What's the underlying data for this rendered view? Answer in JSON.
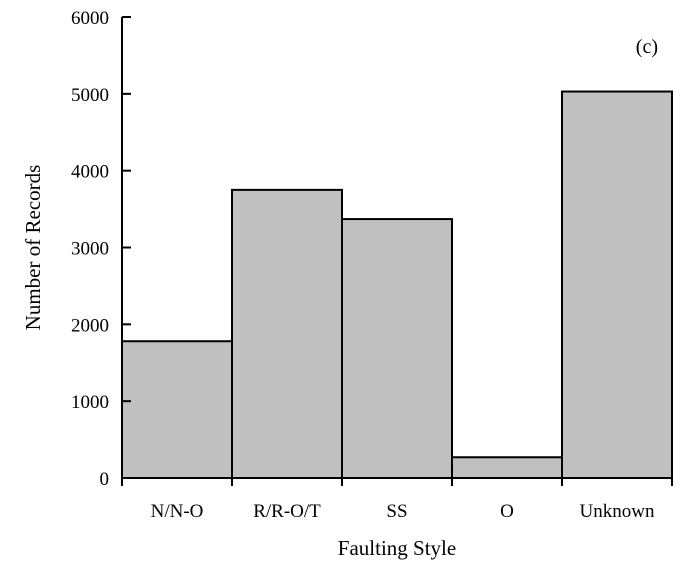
{
  "chart_data": {
    "type": "bar",
    "categories": [
      "N/N-O",
      "R/R-O/T",
      "SS",
      "O",
      "Unknown"
    ],
    "values": [
      1780,
      3750,
      3370,
      270,
      5030
    ],
    "title": "",
    "annotation": "(c)",
    "xlabel": "Faulting Style",
    "ylabel": "Number of Records",
    "ylim": [
      0,
      6000
    ],
    "yticks": [
      0,
      1000,
      2000,
      3000,
      4000,
      5000,
      6000
    ],
    "yticks_labels": [
      "0",
      "1000",
      "2000",
      "3000",
      "4000",
      "5000",
      "6000"
    ],
    "grid": false,
    "bar_color": "#c0c0c0",
    "edge_color": "#000000"
  }
}
